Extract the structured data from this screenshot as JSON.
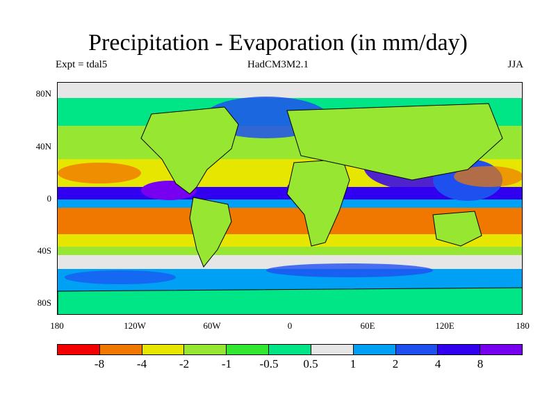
{
  "title": "Precipitation - Evaporation (in mm/day)",
  "experiment_label": "Expt = tdal5",
  "model_label": "HadCM3M2.1",
  "season_label": "JJA",
  "y_axis_ticks": [
    "80N",
    "40N",
    "0",
    "40S",
    "80S"
  ],
  "x_axis_ticks": [
    "180",
    "120W",
    "60W",
    "0",
    "60E",
    "120E",
    "180"
  ],
  "colorbar": {
    "colors": [
      "#f50000",
      "#f07800",
      "#e6e600",
      "#96e632",
      "#32e632",
      "#00e687",
      "#e6e6e6",
      "#00a0f5",
      "#1e50f0",
      "#3200f0",
      "#7800f0"
    ],
    "labels": [
      "-8",
      "-4",
      "-2",
      "-1",
      "-0.5",
      "0.5",
      "1",
      "2",
      "4",
      "8"
    ]
  }
}
